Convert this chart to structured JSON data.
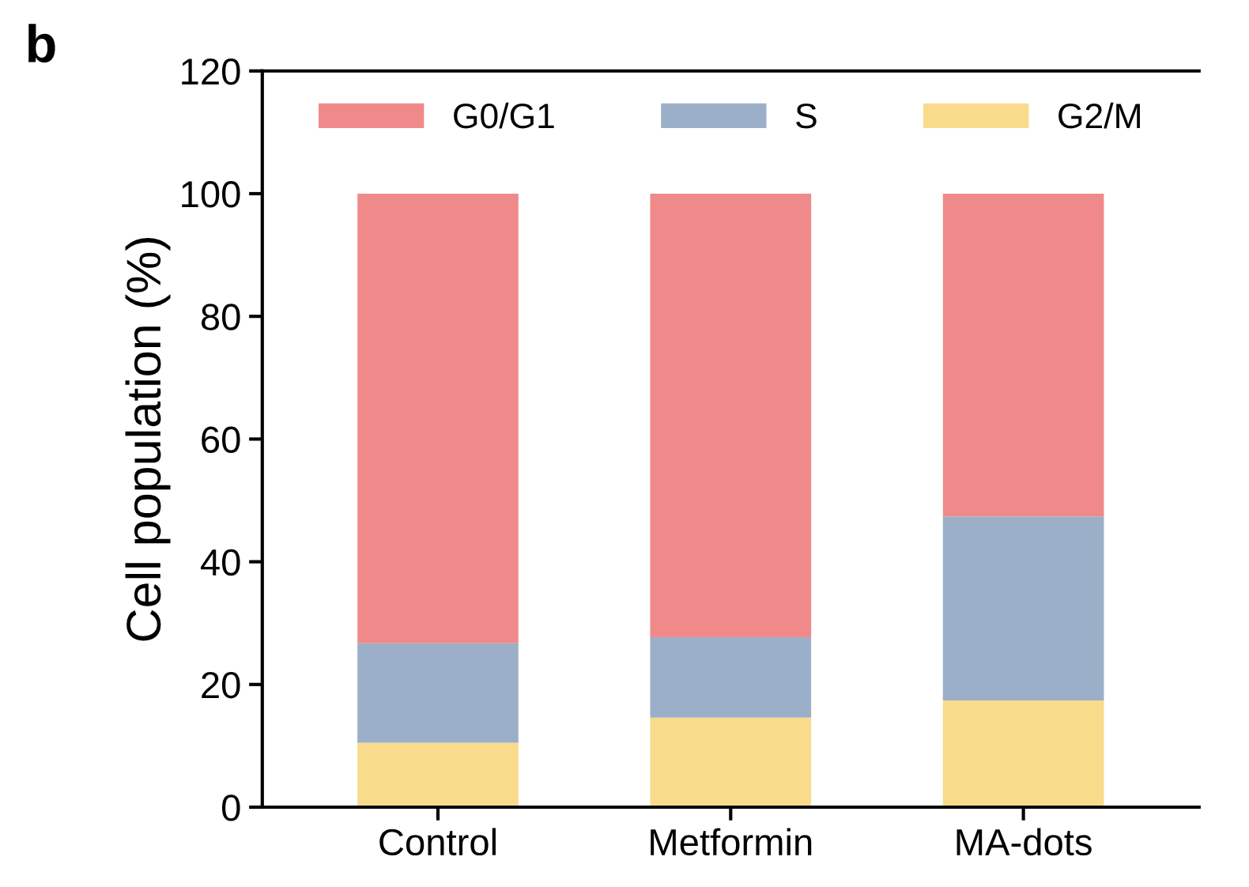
{
  "chart_data": {
    "type": "bar",
    "stacked": true,
    "ylabel": "Cell population (%)",
    "annotations": [
      "b"
    ],
    "categories": [
      "Control",
      "Metformin",
      "MA-dots"
    ],
    "series": [
      {
        "name": "G2/M",
        "color": "#f8dc8c",
        "values": [
          10.5,
          14.6,
          17.4
        ]
      },
      {
        "name": "S",
        "color": "#9bb0c8",
        "values": [
          16.2,
          13.1,
          30.0
        ]
      },
      {
        "name": "G0/G1",
        "color": "#f08a8a",
        "values": [
          73.3,
          72.3,
          52.6
        ]
      }
    ],
    "ylim": [
      0,
      120
    ],
    "yticks": [
      0,
      20,
      40,
      60,
      80,
      100,
      120
    ],
    "grid": false,
    "legend": "top"
  }
}
